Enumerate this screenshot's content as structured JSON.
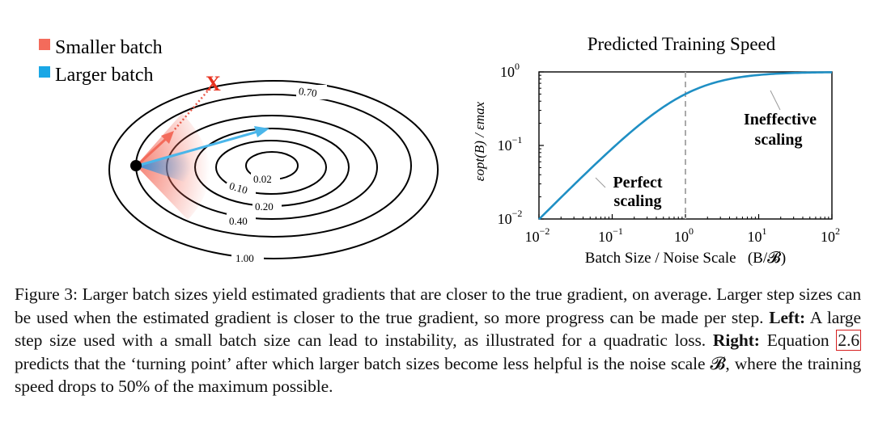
{
  "left_panel": {
    "legend": [
      {
        "label": "Smaller batch",
        "color": "#f36b5b"
      },
      {
        "label": "Larger batch",
        "color": "#1aa7e6"
      }
    ],
    "contour_labels": [
      "0.02",
      "0.10",
      "0.20",
      "0.40",
      "0.70",
      "1.00"
    ],
    "instability_marker": "X",
    "colors": {
      "smaller": "#f3715e",
      "larger": "#4ab6ea",
      "marker": "#e8321f"
    }
  },
  "chart_data": {
    "type": "line",
    "title": "Predicted Training Speed",
    "xlabel": "Batch Size / Noise Scale   (B/𝓑)",
    "ylabel": "εopt(B) / εmax",
    "xscale": "log",
    "yscale": "log",
    "xlim": [
      0.01,
      100
    ],
    "ylim": [
      0.01,
      1
    ],
    "x_ticks": [
      {
        "base": "10",
        "exp": "−2"
      },
      {
        "base": "10",
        "exp": "−1"
      },
      {
        "base": "10",
        "exp": "0"
      },
      {
        "base": "10",
        "exp": "1"
      },
      {
        "base": "10",
        "exp": "2"
      }
    ],
    "y_ticks": [
      {
        "base": "10",
        "exp": "−2"
      },
      {
        "base": "10",
        "exp": "−1"
      },
      {
        "base": "10",
        "exp": "0"
      }
    ],
    "series": [
      {
        "x": [
          0.01,
          0.02,
          0.05,
          0.1,
          0.2,
          0.5,
          1,
          2,
          5,
          10,
          20,
          50,
          100
        ],
        "y": [
          0.0099,
          0.0196,
          0.0476,
          0.0909,
          0.1667,
          0.3333,
          0.5,
          0.6667,
          0.8333,
          0.9091,
          0.9524,
          0.9804,
          0.9901
        ],
        "color": "#1f8fc4"
      }
    ],
    "vline": {
      "x": 1,
      "style": "dashed"
    },
    "annotations": [
      {
        "text_lines": [
          "Perfect",
          "scaling"
        ],
        "anchor": [
          0.15,
          0.08
        ]
      },
      {
        "text_lines": [
          "Ineffective",
          "scaling"
        ],
        "anchor": [
          10,
          0.3
        ]
      }
    ],
    "grid": false
  },
  "caption": {
    "figure_label": "Figure 3:",
    "text1": " Larger batch sizes yield estimated gradients that are closer to the true gradient, on average. Larger step sizes can be used when the estimated gradient is closer to the true gradient, so more progress can be made per step. ",
    "left_label": "Left:",
    "text2": " A large step size used with a small batch size can lead to instability, as illustrated for a quadratic loss. ",
    "right_label": "Right:",
    "text3": " Equation ",
    "equation_ref": "2.6",
    "text4": " predicts that the ‘turning point’ after which larger batch sizes become less helpful is the noise scale 𝓑, where the training speed drops to 50% of the maximum possible."
  }
}
